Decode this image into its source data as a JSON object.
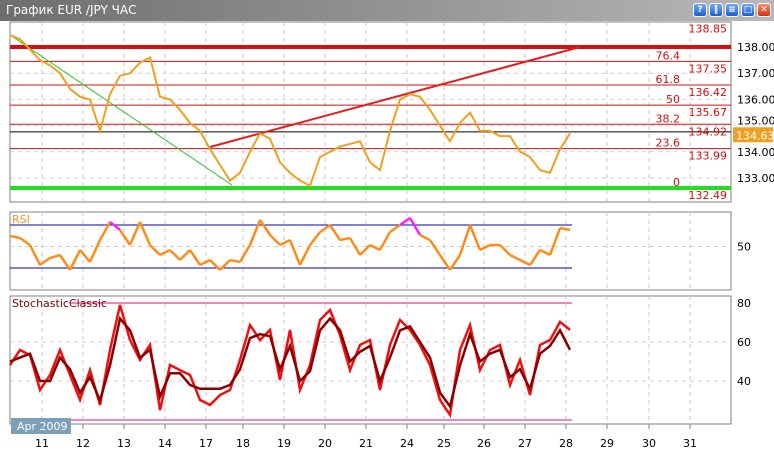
{
  "window": {
    "title": "График EUR /JPY  ЧАС",
    "buttons": [
      {
        "icon": "help-icon",
        "glyph": "?"
      },
      {
        "icon": "pause-icon",
        "glyph": "‖"
      },
      {
        "icon": "list-icon",
        "glyph": "≡"
      },
      {
        "icon": "maximize-icon",
        "glyph": "□"
      },
      {
        "icon": "close-icon",
        "glyph": "✕"
      }
    ]
  },
  "colors": {
    "price": "#f0a020",
    "fib": "#d01010",
    "trend_up": "#e02020",
    "trend_down": "#30c030",
    "support": "#22dd22",
    "rsi": "#ff8c1a",
    "rsi_over": "#ff20ff",
    "rsi_under": "#30e030",
    "stoch_main": "#ee1111",
    "stoch_signal": "#8b0000",
    "stoch_band": "#ee88bb",
    "badge": "#f0a020"
  },
  "chart_data": [
    {
      "type": "line",
      "title": "",
      "price_axis_ticks": [
        "138.00",
        "137.00",
        "136.00",
        "135.00",
        "134.00",
        "133.00"
      ],
      "ylim": [
        132.35,
        138.9
      ],
      "x_ticks": [
        "11",
        "12",
        "13",
        "14",
        "17",
        "18",
        "19",
        "20",
        "21",
        "24",
        "25",
        "26",
        "27",
        "28",
        "29",
        "30",
        "31"
      ],
      "period_label": "Apr 2009",
      "current_price": "134.63",
      "price": [
        138.45,
        138.3,
        137.9,
        137.5,
        137.3,
        137.0,
        136.4,
        136.1,
        136.0,
        134.8,
        136.2,
        136.9,
        137.0,
        137.4,
        137.6,
        136.1,
        136.0,
        135.6,
        135.1,
        134.8,
        134.1,
        133.5,
        132.9,
        133.2,
        134.0,
        134.7,
        134.5,
        133.6,
        133.2,
        132.9,
        132.7,
        133.8,
        134.0,
        134.2,
        134.3,
        134.4,
        133.6,
        133.3,
        134.8,
        136.0,
        136.2,
        136.1,
        135.6,
        135.0,
        134.4,
        135.1,
        135.5,
        134.8,
        134.8,
        134.6,
        134.6,
        134.0,
        133.8,
        133.3,
        133.2,
        134.1,
        134.7
      ],
      "fib_levels": [
        {
          "price": 138.85,
          "label": "138.85"
        },
        {
          "price": 138.0,
          "label": "",
          "thick": true
        },
        {
          "price": 137.45,
          "label": "76.4"
        },
        {
          "price": 137.35,
          "label": "137.35",
          "textonly": true
        },
        {
          "price": 136.55,
          "label": "61.8"
        },
        {
          "price": 136.42,
          "label": "136.42",
          "textonly": true
        },
        {
          "price": 135.78,
          "label": "50"
        },
        {
          "price": 135.67,
          "label": "135.67",
          "textonly": true
        },
        {
          "price": 135.05,
          "label": "38.2"
        },
        {
          "price": 134.92,
          "label": "134.92",
          "textonly": true,
          "black": true
        },
        {
          "price": 134.12,
          "label": "23.6"
        },
        {
          "price": 133.99,
          "label": "133.99",
          "textonly": true
        },
        {
          "price": 132.62,
          "label": "0",
          "green": true
        },
        {
          "price": 132.49,
          "label": "132.49",
          "textonly": true
        }
      ]
    },
    {
      "type": "line",
      "title": "RSI",
      "ylim": [
        20,
        80
      ],
      "levels": [
        70,
        30
      ],
      "y_ticks": [
        "50"
      ],
      "values": [
        59.8,
        57.9,
        51.4,
        32.8,
        39.3,
        42.1,
        28.2,
        46.8,
        35.6,
        56,
        72.8,
        65.4,
        51.4,
        72.8,
        51.4,
        42.1,
        46.8,
        37.4,
        46.8,
        32.8,
        37.4,
        28.2,
        37.4,
        35.6,
        51.4,
        74.7,
        60.7,
        51.4,
        56,
        32.8,
        51.4,
        63.5,
        70,
        56,
        57.9,
        42.1,
        51.4,
        46.8,
        63.5,
        70,
        76.5,
        60.7,
        56,
        42.1,
        28.2,
        42.1,
        70,
        46.8,
        51.4,
        51.4,
        42.1,
        37.4,
        32.8,
        46.8,
        42.1,
        67.2,
        65.4
      ]
    },
    {
      "type": "line",
      "title": "StochasticClassic",
      "ylim": [
        18,
        84
      ],
      "levels": [
        80,
        20
      ],
      "y_ticks": [
        "80",
        "60",
        "40"
      ],
      "series": [
        {
          "role": "main",
          "values": [
            48.2,
            55.9,
            53.3,
            35.4,
            43.1,
            55.9,
            43.1,
            30.3,
            45.6,
            27.7,
            55.9,
            79,
            61,
            50.8,
            58.5,
            25.1,
            48.2,
            45.6,
            43.1,
            30.3,
            27.7,
            32.8,
            35.4,
            50.8,
            68.7,
            61,
            66.2,
            40.5,
            66.2,
            35.4,
            48.2,
            71.3,
            76.4,
            63.6,
            45.6,
            58.5,
            61,
            35.4,
            58.5,
            71.3,
            66.2,
            58.5,
            48.2,
            30.3,
            22.6,
            55.9,
            68.7,
            45.6,
            55.9,
            58.5,
            37.9,
            50.8,
            32.8,
            58.5,
            61,
            70.3,
            66.2
          ]
        },
        {
          "role": "signal",
          "values": [
            50,
            52,
            54,
            40,
            40,
            52,
            46,
            34,
            42,
            30,
            48,
            72,
            66,
            52,
            56,
            32,
            44,
            44,
            38,
            36,
            36,
            36,
            38,
            46,
            62,
            64,
            63,
            46,
            58,
            40,
            45,
            66,
            72,
            66,
            50,
            55,
            58,
            40,
            52,
            66,
            68,
            60,
            52,
            34,
            27,
            48,
            64,
            50,
            54,
            56,
            42,
            46,
            36,
            54,
            58,
            66,
            56
          ]
        }
      ]
    }
  ]
}
